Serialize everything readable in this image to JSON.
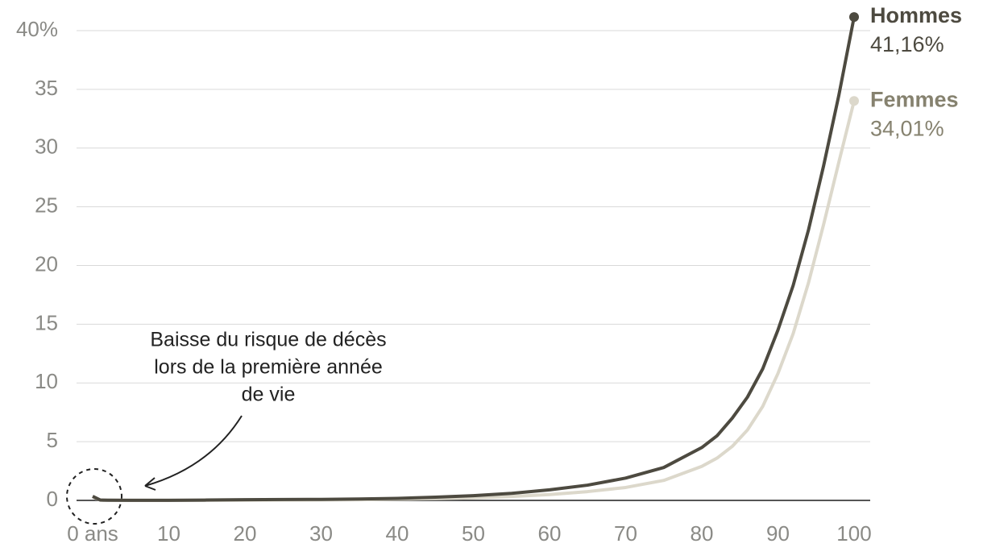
{
  "chart_data": {
    "type": "line",
    "x": [
      0,
      1,
      2,
      5,
      10,
      15,
      20,
      25,
      30,
      35,
      40,
      45,
      50,
      55,
      60,
      65,
      70,
      75,
      80,
      82,
      84,
      86,
      88,
      90,
      92,
      94,
      96,
      98,
      100
    ],
    "series": [
      {
        "name": "Hommes",
        "color": "#4d4a40",
        "label_color": "#4d4a40",
        "values": [
          0.35,
          0.03,
          0.02,
          0.01,
          0.01,
          0.03,
          0.06,
          0.08,
          0.09,
          0.12,
          0.17,
          0.27,
          0.4,
          0.6,
          0.9,
          1.3,
          1.9,
          2.8,
          4.5,
          5.5,
          7,
          8.8,
          11.2,
          14.5,
          18.3,
          23,
          28.5,
          34.5,
          41.16
        ],
        "value_labels": [
          null,
          null,
          null,
          null,
          null,
          null,
          null,
          null,
          null,
          null,
          null,
          null,
          null,
          null,
          null,
          null,
          null,
          null,
          null,
          null,
          null,
          null,
          null,
          null,
          null,
          null,
          null,
          null,
          "41,16%"
        ]
      },
      {
        "name": "Femmes",
        "color": "#dcd8cb",
        "label_color": "#86826f",
        "values": [
          0.3,
          0.02,
          0.02,
          0.01,
          0.01,
          0.02,
          0.02,
          0.03,
          0.04,
          0.06,
          0.1,
          0.15,
          0.22,
          0.33,
          0.5,
          0.75,
          1.1,
          1.7,
          2.9,
          3.6,
          4.6,
          6,
          8,
          10.8,
          14.2,
          18.5,
          23.5,
          28.8,
          34.01
        ],
        "value_labels": [
          null,
          null,
          null,
          null,
          null,
          null,
          null,
          null,
          null,
          null,
          null,
          null,
          null,
          null,
          null,
          null,
          null,
          null,
          null,
          null,
          null,
          null,
          null,
          null,
          null,
          null,
          null,
          null,
          "34,01%"
        ]
      }
    ],
    "xlim": [
      0,
      100
    ],
    "xticks": [
      {
        "value": 0,
        "label": "0 ans"
      },
      10,
      20,
      30,
      40,
      50,
      60,
      70,
      80,
      90,
      100
    ],
    "ylim": [
      0,
      40
    ],
    "yticks": [
      0,
      5,
      10,
      15,
      20,
      25,
      30,
      35,
      {
        "value": 40,
        "label": "40%"
      }
    ],
    "grid": true,
    "annotation": [
      "Baisse du risque de décès",
      "lors de la première année",
      "de vie"
    ]
  }
}
